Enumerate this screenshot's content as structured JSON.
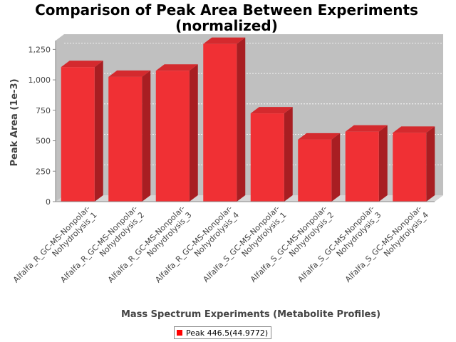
{
  "chart_data": {
    "type": "bar",
    "style": "3d",
    "title_lines": [
      "Comparison of Peak Area Between Experiments",
      "(normalized)"
    ],
    "xlabel": "Mass Spectrum Experiments (Metabolite Profiles)",
    "ylabel": "Peak Area (1e-3)",
    "ylim": [
      0,
      1375
    ],
    "yticks": [
      0,
      250,
      500,
      750,
      1000,
      1250
    ],
    "ytick_labels": [
      "0",
      "250",
      "500",
      "750",
      "1,000",
      "1,250"
    ],
    "grid": true,
    "categories": [
      {
        "line1": "Alfalfa_R_GC-MS-Nonpolar-",
        "line2": "Nohydrolysis_1"
      },
      {
        "line1": "Alfalfa_R_GC-MS-Nonpolar-",
        "line2": "Nohydrolysis_2"
      },
      {
        "line1": "Alfalfa_R_GC-MS-Nonpolar-",
        "line2": "Nohydrolysis_3"
      },
      {
        "line1": "Alfalfa_R_GC-MS-Nonpolar-",
        "line2": "Nohydrolysis_4"
      },
      {
        "line1": "Alfalfa_S_GC-MS-Nonpolar-",
        "line2": "Nohydrolysis_1"
      },
      {
        "line1": "Alfalfa_S_GC-MS-Nonpolar-",
        "line2": "Nohydrolysis_2"
      },
      {
        "line1": "Alfalfa_S_GC-MS-Nonpolar-",
        "line2": "Nohydrolysis_3"
      },
      {
        "line1": "Alfalfa_S_GC-MS-Nonpolar-",
        "line2": "Nohydrolysis_4"
      }
    ],
    "series": [
      {
        "name": "Peak 446.5(44.9772)",
        "color": "#ff0000",
        "values": [
          1105,
          1025,
          1075,
          1295,
          725,
          510,
          575,
          565
        ]
      }
    ],
    "legend_position": "bottom"
  },
  "colors": {
    "plot_background": "#c0c0c0",
    "bar_front": "#f03034",
    "bar_top": "#d42a2e",
    "bar_side": "#a81e22",
    "legend_swatch": "#ff0000"
  }
}
